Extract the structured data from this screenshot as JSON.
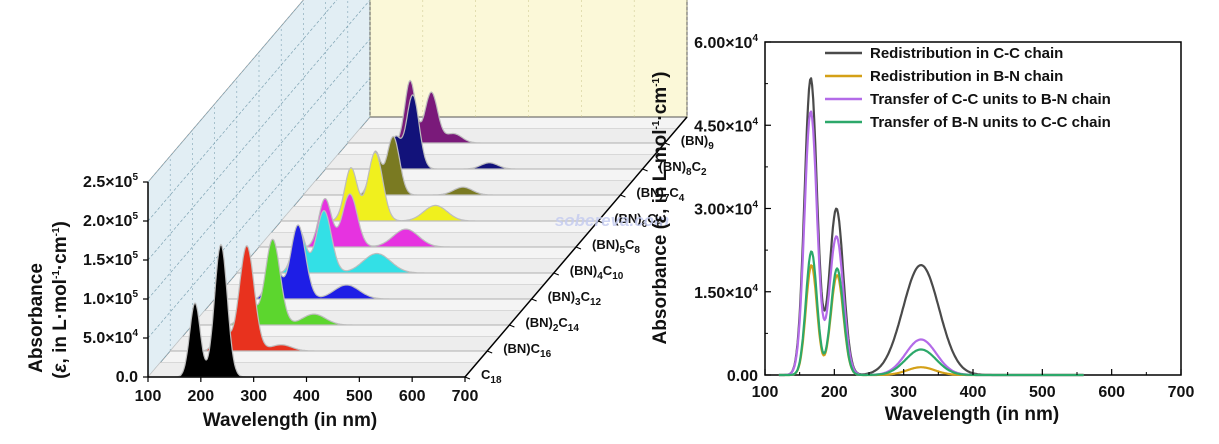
{
  "chart_data": [
    {
      "type": "area",
      "subtype": "3d-waterfall",
      "ylabel_parts": [
        "Absorbance",
        "(",
        "ε",
        ", in L·mol",
        "-1",
        "·cm",
        "-1",
        ")"
      ],
      "xlabel": "Wavelength (in nm)",
      "xlim": [
        100,
        700
      ],
      "xticks": [
        "100",
        "200",
        "300",
        "400",
        "500",
        "600",
        "700"
      ],
      "ylim": [
        0,
        250000
      ],
      "yticks": [
        {
          "v": 0,
          "label": "0.0"
        },
        {
          "v": 50000,
          "label": "5.0×10",
          "exp": "4"
        },
        {
          "v": 100000,
          "label": "1.0×10",
          "exp": "5"
        },
        {
          "v": 150000,
          "label": "1.5×10",
          "exp": "5"
        },
        {
          "v": 200000,
          "label": "2.0×10",
          "exp": "5"
        },
        {
          "v": 250000,
          "label": "2.5×10",
          "exp": "5"
        }
      ],
      "series": [
        {
          "name_parts": [
            [
              "C",
              "18"
            ]
          ],
          "color": "#000000",
          "peaks": [
            [
              189,
              95000,
              10
            ],
            [
              238,
              170000,
              12
            ]
          ]
        },
        {
          "name_parts": [
            [
              "(BN)C",
              "16"
            ]
          ],
          "color": "#e8321e",
          "peaks": [
            [
              198,
              32000,
              12
            ],
            [
              245,
              135000,
              14
            ],
            [
              310,
              8000,
              20
            ]
          ]
        },
        {
          "name_parts": [
            [
              "(BN)",
              "2"
            ],
            [
              "C",
              "14"
            ]
          ],
          "color": "#5cd62e",
          "peaks": [
            [
              205,
              40000,
              12
            ],
            [
              252,
              110000,
              14
            ],
            [
              330,
              14000,
              22
            ]
          ]
        },
        {
          "name_parts": [
            [
              "(BN)",
              "3"
            ],
            [
              "C",
              "12"
            ]
          ],
          "color": "#1e1ee6",
          "peaks": [
            [
              212,
              48000,
              12
            ],
            [
              258,
              95000,
              14
            ],
            [
              350,
              18000,
              24
            ]
          ]
        },
        {
          "name_parts": [
            [
              "(BN)",
              "4"
            ],
            [
              "C",
              "10"
            ]
          ],
          "color": "#33e0e6",
          "peaks": [
            [
              218,
              55000,
              12
            ],
            [
              265,
              80000,
              14
            ],
            [
              365,
              25000,
              26
            ]
          ]
        },
        {
          "name_parts": [
            [
              "(BN)",
              "5"
            ],
            [
              "C",
              "8"
            ]
          ],
          "color": "#e633e0",
          "peaks": [
            [
              225,
              62000,
              12
            ],
            [
              272,
              68000,
              14
            ],
            [
              378,
              23000,
              24
            ]
          ]
        },
        {
          "name_parts": [
            [
              "(BN)",
              "6"
            ],
            [
              "C",
              "6"
            ]
          ],
          "color": "#f0f01e",
          "peaks": [
            [
              232,
              68000,
              12
            ],
            [
              278,
              88000,
              14
            ],
            [
              392,
              20000,
              22
            ]
          ]
        },
        {
          "name_parts": [
            [
              "(BN)",
              "7"
            ],
            [
              "C",
              "4"
            ]
          ],
          "color": "#7a7a22",
          "peaks": [
            [
              236,
              55000,
              10
            ],
            [
              270,
              75000,
              12
            ],
            [
              402,
              10000,
              18
            ]
          ]
        },
        {
          "name_parts": [
            [
              "(BN)",
              "8"
            ],
            [
              "C",
              "2"
            ]
          ],
          "color": "#12127a",
          "peaks": [
            [
              232,
              40000,
              10
            ],
            [
              265,
              95000,
              12
            ],
            [
              410,
              8000,
              16
            ]
          ]
        },
        {
          "name_parts": [
            [
              "(BN)",
              "9"
            ]
          ],
          "color": "#7a1a7a",
          "peaks": [
            [
              218,
              80000,
              10
            ],
            [
              258,
              65000,
              12
            ],
            [
              300,
              12000,
              16
            ]
          ]
        }
      ]
    },
    {
      "type": "line",
      "ylabel_parts": [
        "Absorbance (",
        "ε",
        ", in L·mol",
        "-1",
        "·cm",
        "-1",
        ")"
      ],
      "xlabel": "Wavelength (in nm)",
      "xlim": [
        100,
        700
      ],
      "xticks": [
        "100",
        "200",
        "300",
        "400",
        "500",
        "600",
        "700"
      ],
      "ylim": [
        0,
        60000
      ],
      "yticks": [
        {
          "v": 0,
          "label": "0.00"
        },
        {
          "v": 15000,
          "label": "1.50×10",
          "exp": "4"
        },
        {
          "v": 30000,
          "label": "3.00×10",
          "exp": "4"
        },
        {
          "v": 45000,
          "label": "4.50×10",
          "exp": "4"
        },
        {
          "v": 60000,
          "label": "6.00×10",
          "exp": "4"
        }
      ],
      "legend_position": "top-right",
      "series": [
        {
          "name": "Redistribution in C-C chain",
          "color": "#4a4a4a",
          "peaks": [
            [
              166,
              53500,
              9
            ],
            [
              203,
              30000,
              10
            ],
            [
              325,
              19800,
              26
            ]
          ]
        },
        {
          "name": "Redistribution in B-N chain",
          "color": "#d4a017",
          "peaks": [
            [
              167,
              19800,
              8
            ],
            [
              204,
              18000,
              9
            ],
            [
              325,
              1400,
              20
            ]
          ]
        },
        {
          "name": "Transfer of C-C units to B-N chain",
          "color": "#b36be8",
          "peaks": [
            [
              166,
              47500,
              9
            ],
            [
              203,
              25000,
              10
            ],
            [
              325,
              6400,
              22
            ]
          ]
        },
        {
          "name": "Transfer of B-N units to C-C chain",
          "color": "#2ca86a",
          "peaks": [
            [
              167,
              22300,
              8
            ],
            [
              204,
              19200,
              9
            ],
            [
              325,
              4600,
              22
            ]
          ]
        }
      ]
    }
  ],
  "watermark": "sobereva.com"
}
